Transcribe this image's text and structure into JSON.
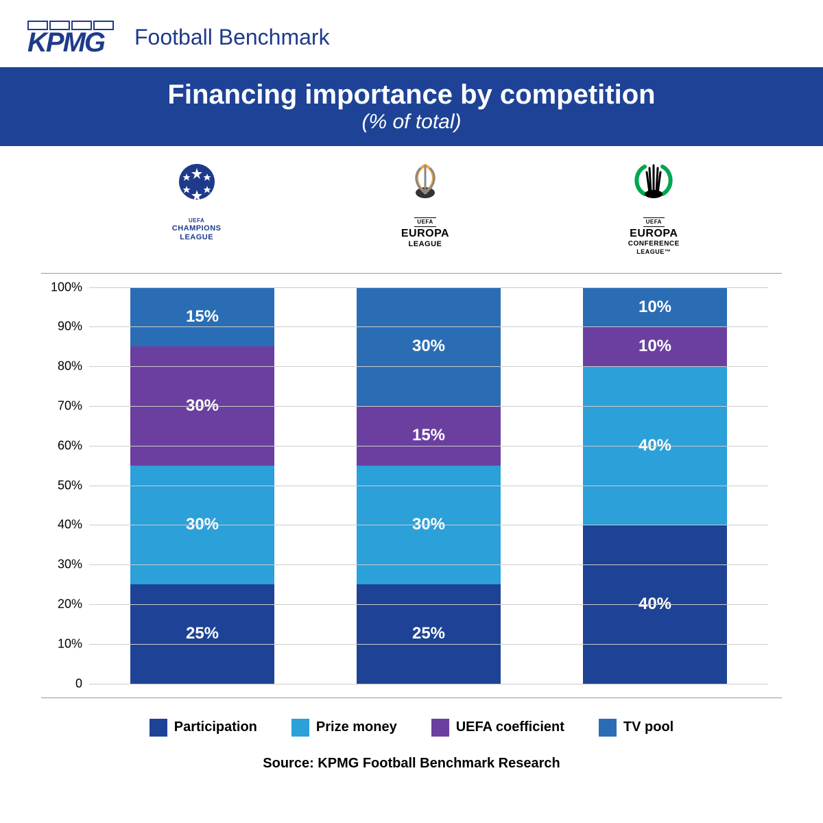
{
  "brand": {
    "kpmg": "KPMG",
    "sub": "Football Benchmark"
  },
  "title": {
    "main": "Financing importance by competition",
    "sub": "(% of total)"
  },
  "competitions": [
    {
      "name": "UEFA CHAMPIONS LEAGUE",
      "label_line1": "CHAMPIONS",
      "label_line2": "LEAGUE",
      "pre": "UEFA"
    },
    {
      "name": "UEFA EUROPA LEAGUE",
      "label_line1": "EUROPA",
      "label_line2": "LEAGUE",
      "pre": "UEFA"
    },
    {
      "name": "UEFA EUROPA CONFERENCE",
      "label_line1": "EUROPA",
      "label_line2": "CONFERENCE",
      "label_line3": "LEAGUE™",
      "pre": "UEFA"
    }
  ],
  "chart": {
    "type": "stacked-bar",
    "ylim": [
      0,
      100
    ],
    "ytick_step": 10,
    "yticks": [
      "0",
      "10%",
      "20%",
      "30%",
      "40%",
      "50%",
      "60%",
      "70%",
      "80%",
      "90%",
      "100%"
    ],
    "grid_color": "#cccccc",
    "background_color": "#ffffff",
    "series": [
      {
        "key": "participation",
        "label": "Participation",
        "color": "#1e4396"
      },
      {
        "key": "prize",
        "label": "Prize money",
        "color": "#2ca0d9"
      },
      {
        "key": "coefficient",
        "label": "UEFA coefficient",
        "color": "#6b3fa0"
      },
      {
        "key": "tvpool",
        "label": "TV pool",
        "color": "#2a6db5"
      }
    ],
    "bars": [
      {
        "values": {
          "participation": 25,
          "prize": 30,
          "coefficient": 30,
          "tvpool": 15
        }
      },
      {
        "values": {
          "participation": 25,
          "prize": 30,
          "coefficient": 15,
          "tvpool": 30
        }
      },
      {
        "values": {
          "participation": 40,
          "prize": 40,
          "coefficient": 10,
          "tvpool": 10
        }
      }
    ],
    "label_suffix": "%",
    "value_fontsize": 24,
    "value_color": "#ffffff"
  },
  "source": "Source: KPMG Football Benchmark Research",
  "colors": {
    "title_bar_bg": "#1e4396",
    "brand_navy": "#1e3a8a"
  }
}
